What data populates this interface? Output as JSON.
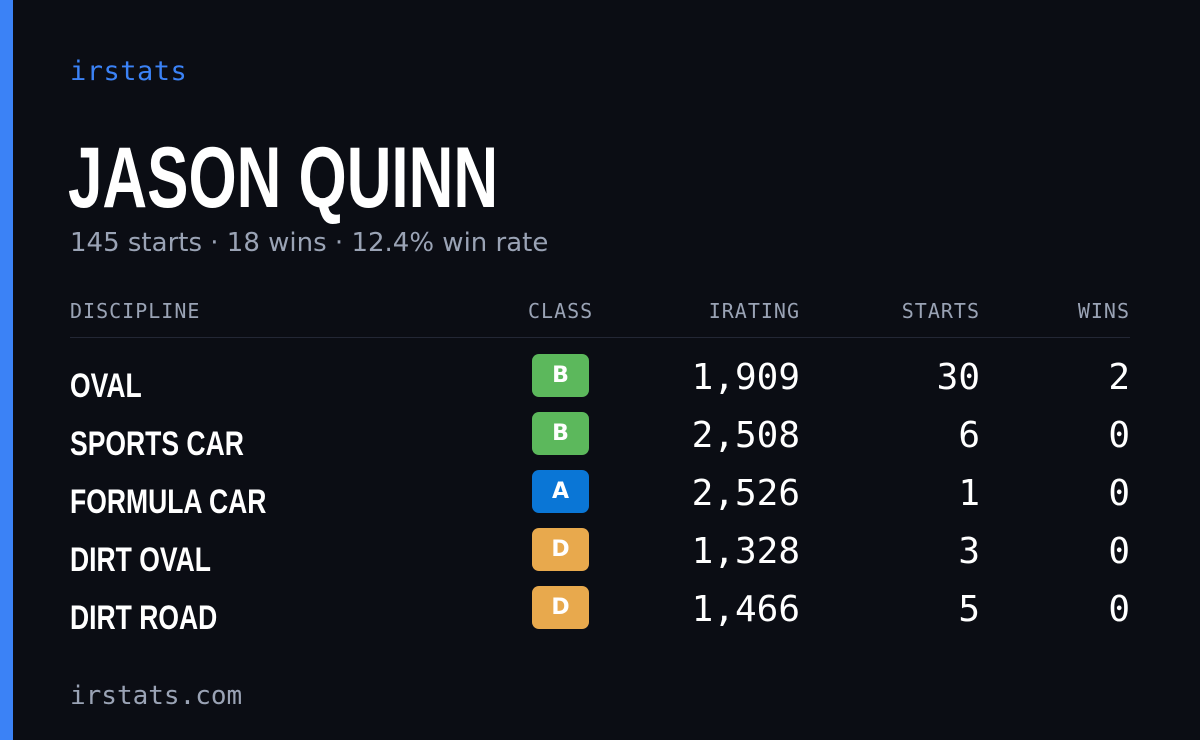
{
  "brand": "irstats",
  "driver": {
    "name": "JASON QUINN",
    "summary": "145 starts · 18 wins · 12.4% win rate"
  },
  "table": {
    "headers": {
      "discipline": "DISCIPLINE",
      "class": "CLASS",
      "irating": "IRATING",
      "starts": "STARTS",
      "wins": "WINS"
    },
    "rows": [
      {
        "discipline": "OVAL",
        "class": "B",
        "class_color": "#5cb85c",
        "irating": "1,909",
        "starts": "30",
        "wins": "2"
      },
      {
        "discipline": "SPORTS CAR",
        "class": "B",
        "class_color": "#5cb85c",
        "irating": "2,508",
        "starts": "6",
        "wins": "0"
      },
      {
        "discipline": "FORMULA CAR",
        "class": "A",
        "class_color": "#0a76d6",
        "irating": "2,526",
        "starts": "1",
        "wins": "0"
      },
      {
        "discipline": "DIRT OVAL",
        "class": "D",
        "class_color": "#e8a94d",
        "irating": "1,328",
        "starts": "3",
        "wins": "0"
      },
      {
        "discipline": "DIRT ROAD",
        "class": "D",
        "class_color": "#e8a94d",
        "irating": "1,466",
        "starts": "5",
        "wins": "0"
      }
    ]
  },
  "footer": "irstats.com",
  "colors": {
    "background": "#0b0d14",
    "accent": "#3b82f6",
    "muted_text": "#9aa3b5"
  }
}
